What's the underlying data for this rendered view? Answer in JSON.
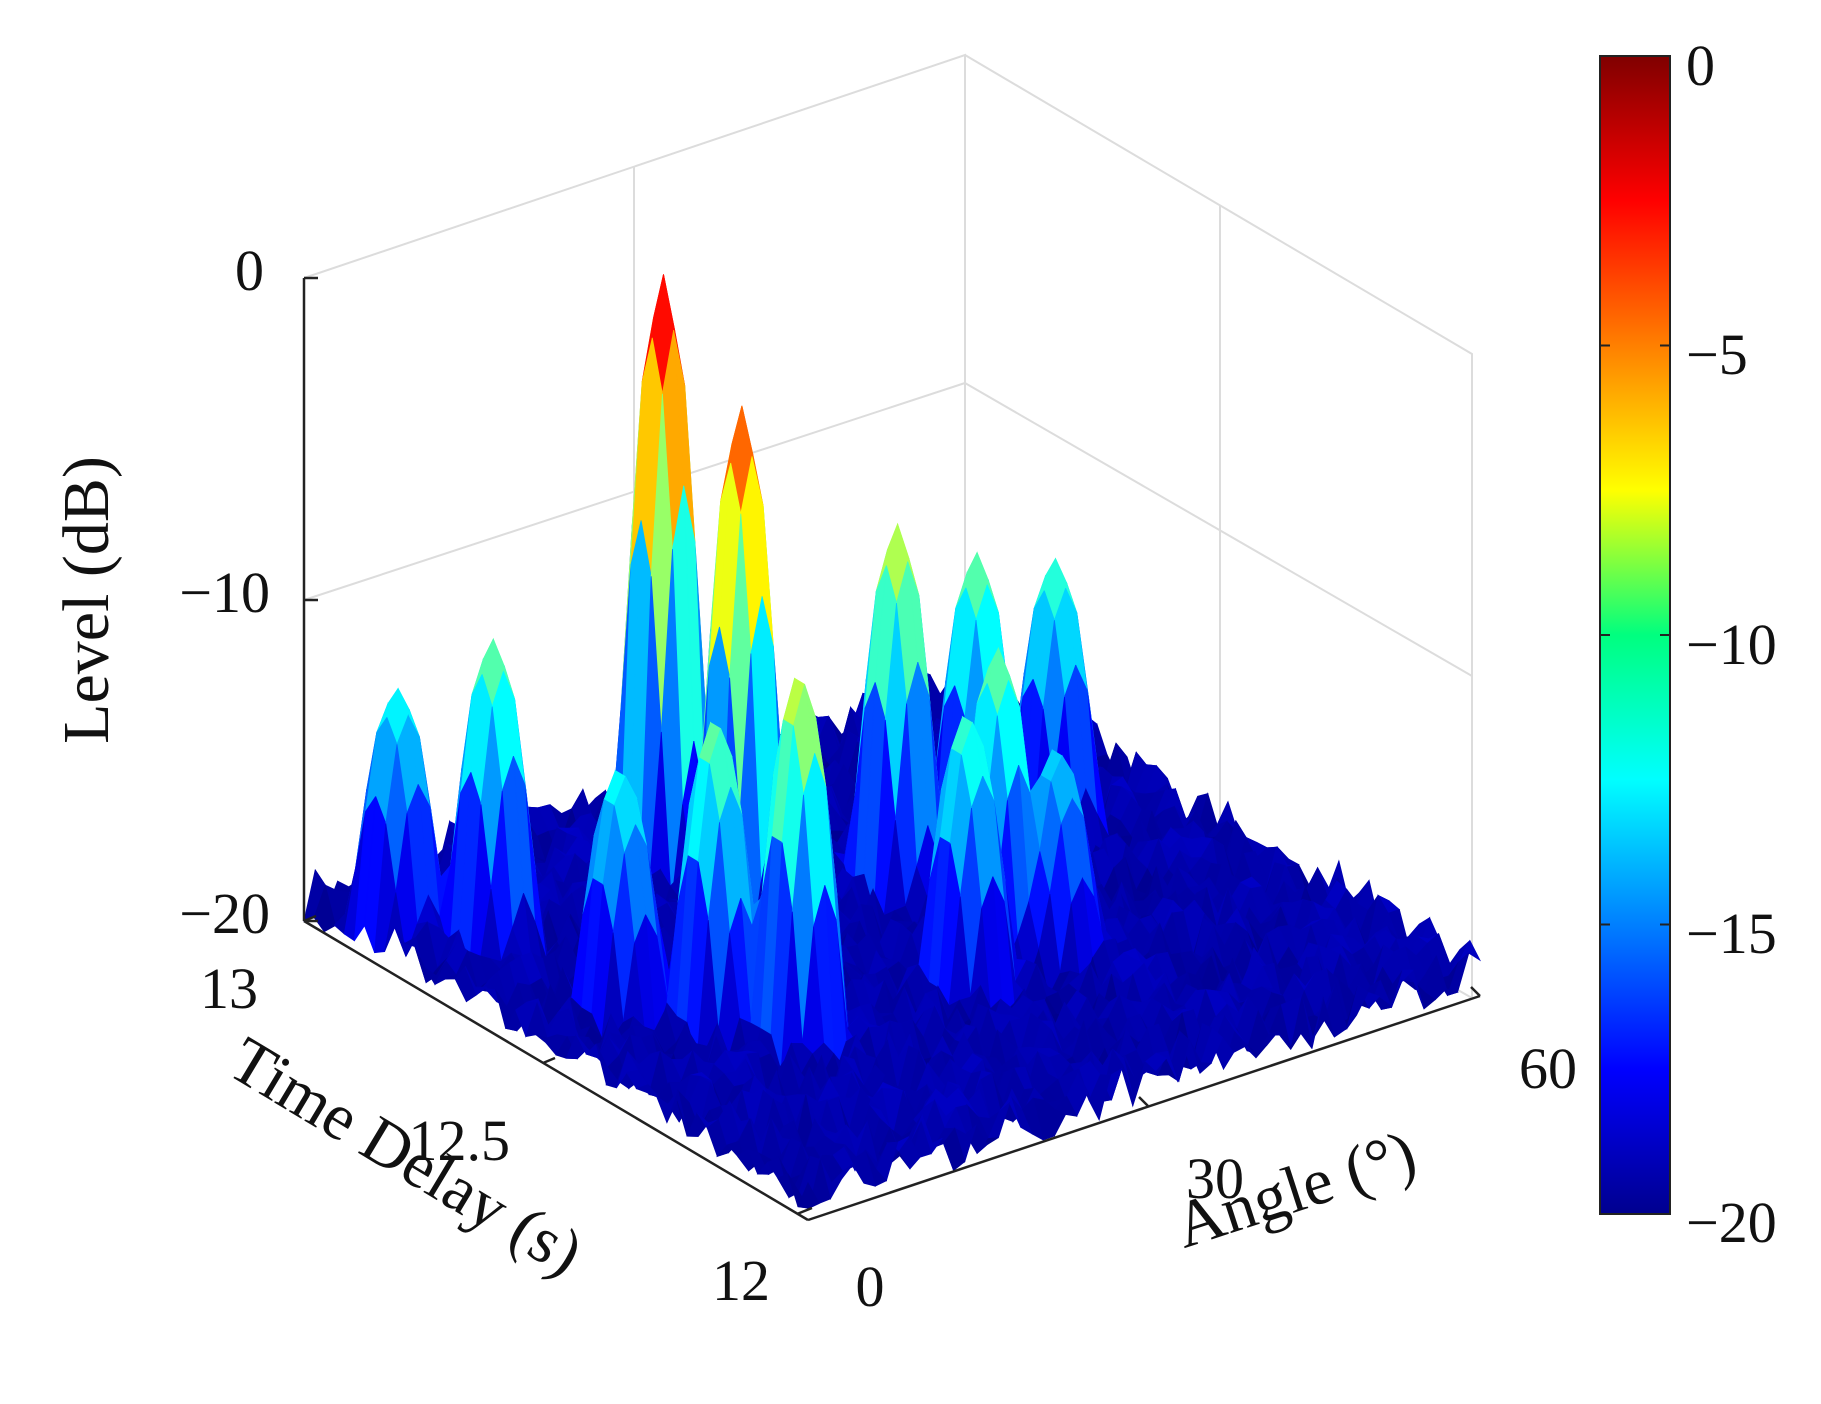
{
  "chart_data": {
    "type": "surface",
    "title": "",
    "xlabel": "Angle (°)",
    "ylabel": "Time Delay (s)",
    "zlabel": "Level (dB)",
    "x_ticks": [
      "0",
      "30",
      "60"
    ],
    "y_ticks": [
      "12",
      "12.5",
      "13"
    ],
    "z_ticks": [
      "0",
      "−10",
      "−20"
    ],
    "xlim": [
      0,
      60
    ],
    "ylim": [
      12,
      13
    ],
    "zlim": [
      -20,
      0
    ],
    "grid": true,
    "colormap": "jet",
    "colorbar": {
      "ticks": [
        "0",
        "−5",
        "−10",
        "−15",
        "−20"
      ],
      "range": [
        -20,
        0
      ],
      "placement": "right"
    },
    "peaks": [
      {
        "angle": 22,
        "delay": 12.62,
        "level": -3
      },
      {
        "angle": 24,
        "delay": 12.82,
        "level": -1
      },
      {
        "angle": 15,
        "delay": 12.35,
        "level": -8
      },
      {
        "angle": 12,
        "delay": 12.45,
        "level": -10
      },
      {
        "angle": 8,
        "delay": 12.55,
        "level": -12
      },
      {
        "angle": 7,
        "delay": 12.78,
        "level": -10
      },
      {
        "angle": 3,
        "delay": 12.88,
        "level": -12
      },
      {
        "angle": 35,
        "delay": 12.6,
        "level": -8
      },
      {
        "angle": 43,
        "delay": 12.62,
        "level": -10
      },
      {
        "angle": 50,
        "delay": 12.62,
        "level": -11
      },
      {
        "angle": 35,
        "delay": 12.4,
        "level": -10
      },
      {
        "angle": 30,
        "delay": 12.35,
        "level": -11
      },
      {
        "angle": 38,
        "delay": 12.35,
        "level": -13
      }
    ],
    "noise_floor": -20
  }
}
